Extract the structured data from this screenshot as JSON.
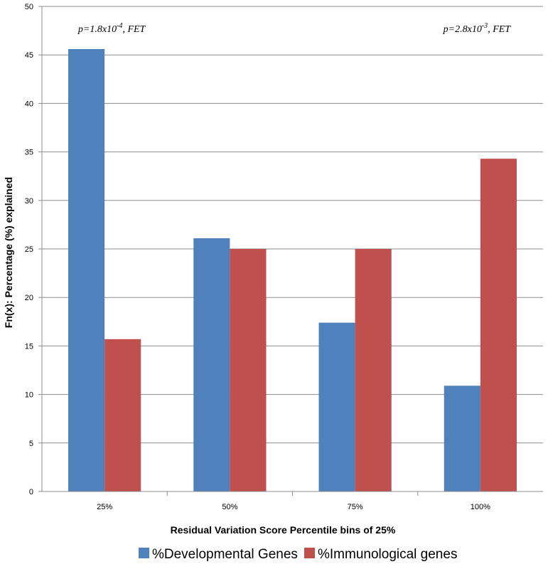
{
  "chart_data": {
    "type": "bar",
    "title": "",
    "xlabel": "Residual Variation Score Percentile bins of 25%",
    "ylabel": "Fn(x): Percentage (%) explained",
    "ylim": [
      0,
      50
    ],
    "yticks": [
      0,
      5,
      10,
      15,
      20,
      25,
      30,
      35,
      40,
      45,
      50
    ],
    "ytick_labels": [
      "0",
      "5",
      "10",
      "15",
      "20",
      "25",
      "30",
      "35",
      "40",
      "45",
      "50"
    ],
    "categories": [
      "25%",
      "50%",
      "75%",
      "100%"
    ],
    "series": [
      {
        "name": "%Developmental Genes",
        "color": "#4F81BD",
        "values": [
          45.6,
          26.1,
          17.4,
          10.9
        ]
      },
      {
        "name": "%Immunological genes",
        "color": "#C0504D",
        "values": [
          15.7,
          25.0,
          25.0,
          34.3
        ]
      }
    ],
    "annotations": [
      {
        "prefix": "p=1.8x10",
        "sup": "-4",
        "suffix": ", FET",
        "category": "25%"
      },
      {
        "prefix": "p=2.8x10",
        "sup": "-3",
        "suffix": ", FET",
        "category": "100%"
      }
    ],
    "grid": true,
    "legend_position": "bottom"
  }
}
